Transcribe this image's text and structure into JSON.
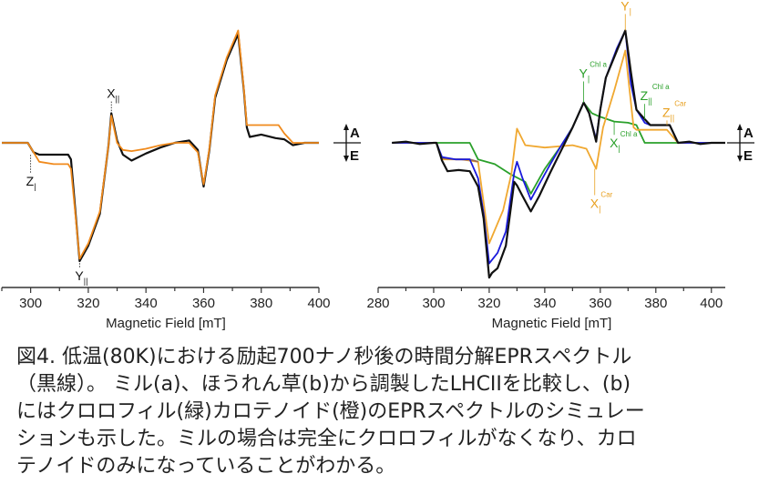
{
  "chart_data": [
    {
      "type": "line",
      "panel": "a",
      "xlabel": "Magnetic Field [mT]",
      "ylabel": "",
      "xlim": [
        290,
        400
      ],
      "ylim": [
        -1.1,
        1.0
      ],
      "xticks": [
        300,
        320,
        340,
        360,
        380,
        400
      ],
      "tick_labels": [
        "300",
        "320",
        "340",
        "360",
        "380",
        "400"
      ],
      "sign_labels": {
        "up": "A",
        "down": "E"
      },
      "series": [
        {
          "name": "experiment",
          "color": "#111111",
          "x": [
            290,
            295,
            299,
            301,
            303,
            308,
            313,
            314,
            317,
            320,
            324,
            327,
            328,
            330,
            332,
            335,
            340,
            345,
            350,
            355,
            358,
            360,
            362,
            364,
            368,
            372,
            374,
            375,
            376,
            380,
            385,
            388,
            391,
            395,
            400
          ],
          "y": [
            0,
            0,
            0,
            -0.08,
            -0.1,
            -0.1,
            -0.1,
            -0.14,
            -1.0,
            -0.87,
            -0.6,
            -0.02,
            0.25,
            0.02,
            -0.1,
            -0.15,
            -0.09,
            -0.04,
            0,
            0.02,
            -0.06,
            -0.37,
            -0.06,
            0.38,
            0.7,
            0.92,
            0.44,
            0.13,
            0.05,
            0.07,
            0.04,
            0.03,
            -0.02,
            0,
            0
          ]
        },
        {
          "name": "simulation",
          "color": "#f08a1c",
          "x": [
            290,
            299,
            301,
            303,
            308,
            313,
            314,
            317,
            320,
            324,
            327,
            328,
            330,
            332,
            335,
            340,
            345,
            350,
            355,
            358,
            360,
            362,
            364,
            368,
            372,
            374,
            375,
            376,
            380,
            386,
            388,
            391,
            400
          ],
          "y": [
            0,
            0,
            -0.08,
            -0.16,
            -0.18,
            -0.18,
            -0.22,
            -0.98,
            -0.85,
            -0.58,
            -0.02,
            0.23,
            0.0,
            -0.06,
            -0.07,
            -0.05,
            -0.02,
            0,
            0,
            -0.08,
            -0.35,
            -0.05,
            0.4,
            0.72,
            0.95,
            0.45,
            0.15,
            0.15,
            0.15,
            0.15,
            0.08,
            0,
            0
          ]
        }
      ],
      "annotations": [
        {
          "main": "X",
          "sub": "||",
          "sup": "",
          "color": "#111111",
          "x": 328,
          "y": 0.38,
          "line_to": 0.25
        },
        {
          "main": "Z",
          "sub": "|",
          "sup": "",
          "color": "#111111",
          "x": 300,
          "y": -0.36,
          "line_to": -0.09
        },
        {
          "main": "Y",
          "sub": "||",
          "sup": "",
          "color": "#111111",
          "x": 317,
          "y": -1.16,
          "line_to": -1.0
        }
      ]
    },
    {
      "type": "line",
      "panel": "b",
      "xlabel": "Magnetic Field [mT]",
      "ylabel": "",
      "xlim": [
        280,
        405
      ],
      "ylim": [
        -1.2,
        1.2
      ],
      "xticks": [
        280,
        300,
        320,
        340,
        360,
        380,
        400
      ],
      "tick_labels": [
        "280",
        "300",
        "320",
        "340",
        "360",
        "380",
        "400"
      ],
      "sign_labels": {
        "up": "A",
        "down": "E"
      },
      "series": [
        {
          "name": "green-chlorophyll-sim",
          "color": "#2aa02a",
          "x": [
            285,
            313,
            316,
            322,
            328,
            333,
            335,
            340,
            346,
            350,
            354,
            357,
            360,
            365,
            370,
            373,
            376,
            380,
            400
          ],
          "y": [
            0,
            0,
            -0.14,
            -0.18,
            -0.27,
            -0.33,
            -0.43,
            -0.22,
            -0.02,
            0.13,
            0.34,
            0.25,
            0.22,
            0.18,
            0.17,
            0.15,
            0,
            0,
            0
          ]
        },
        {
          "name": "orange-carotenoid-sim",
          "color": "#f0a830",
          "x": [
            285,
            301,
            303,
            310,
            316,
            320,
            325,
            328,
            330,
            333,
            340,
            350,
            355,
            358.5,
            361,
            365,
            369,
            372,
            373,
            380,
            384,
            388,
            400
          ],
          "y": [
            0,
            0,
            -0.14,
            -0.14,
            -0.16,
            -0.85,
            -0.57,
            -0.26,
            0.12,
            -0.02,
            -0.04,
            -0.02,
            -0.05,
            -0.22,
            0.13,
            0.44,
            0.78,
            0.13,
            0.11,
            0.11,
            0.11,
            0,
            0
          ]
        },
        {
          "name": "brown-sum",
          "color": "#9a6a50",
          "x": [
            301,
            303,
            308,
            313,
            316
          ],
          "y": [
            0,
            -0.13,
            -0.14,
            -0.14,
            -0.16
          ]
        },
        {
          "name": "blue-total-sim",
          "color": "#1a1adc",
          "x": [
            285,
            301,
            303,
            308,
            313,
            316,
            318,
            320,
            323,
            326,
            329,
            330,
            332,
            335,
            338,
            342,
            346,
            350,
            354,
            356,
            358.5,
            360,
            362,
            366,
            369,
            371,
            373,
            376,
            378,
            385,
            388,
            400
          ],
          "y": [
            0,
            0,
            -0.12,
            -0.14,
            -0.14,
            -0.3,
            -0.6,
            -1.02,
            -0.93,
            -0.75,
            -0.25,
            -0.16,
            -0.3,
            -0.48,
            -0.35,
            -0.18,
            -0.02,
            0.13,
            0.34,
            0.25,
            0.03,
            0.28,
            0.55,
            0.8,
            0.95,
            0.5,
            0.28,
            0.17,
            0.15,
            0.15,
            0,
            0
          ]
        },
        {
          "name": "black-experiment",
          "color": "#111111",
          "x": [
            285,
            290,
            295,
            300,
            301,
            303,
            305,
            309,
            313,
            316,
            318,
            320,
            321,
            323,
            326,
            329,
            330,
            332,
            335,
            338,
            342,
            346,
            350,
            354,
            356,
            358.5,
            360,
            362,
            366,
            369,
            371,
            373,
            376,
            378,
            385,
            388,
            392,
            396,
            400,
            405
          ],
          "y": [
            0,
            0.01,
            -0.01,
            0,
            0,
            -0.15,
            -0.24,
            -0.23,
            -0.24,
            -0.37,
            -0.64,
            -1.14,
            -1.1,
            -1.06,
            -0.87,
            -0.33,
            -0.36,
            -0.45,
            -0.58,
            -0.45,
            -0.25,
            -0.06,
            0.13,
            0.34,
            0.25,
            0.01,
            0.28,
            0.55,
            0.78,
            0.95,
            0.6,
            0.28,
            0.2,
            0.15,
            0.15,
            0,
            0.01,
            -0.01,
            0,
            0
          ]
        }
      ],
      "annotations": [
        {
          "main": "Y",
          "sub": "|",
          "sup": "Car",
          "color": "#e8a020",
          "x": 369,
          "y": 1.12,
          "line_to": 0.95
        },
        {
          "main": "Y",
          "sub": "|",
          "sup": "Chl a",
          "color": "#2aa02a",
          "x": 354,
          "y": 0.55,
          "line_to": 0.34
        },
        {
          "main": "Z",
          "sub": "||",
          "sup": "Chl a",
          "color": "#2aa02a",
          "x": 376,
          "y": 0.36,
          "line_to": 0.2
        },
        {
          "main": "Z",
          "sub": "||",
          "sup": "Car",
          "color": "#e8a020",
          "x": 384,
          "y": 0.22,
          "line_to": 0.15
        },
        {
          "main": "X",
          "sub": "|",
          "sup": "Chl a",
          "color": "#2aa02a",
          "x": 365,
          "y": -0.04,
          "line_to": 0.18
        },
        {
          "main": "X",
          "sub": "|",
          "sup": "Car",
          "color": "#e8a020",
          "x": 358,
          "y": -0.55,
          "line_to": -0.22
        }
      ]
    }
  ],
  "caption": {
    "lines": [
      "図4. 低温(80K)における励起700ナノ秒後の時間分解EPRスペクトル",
      "（黒線）。 ミル(a)、ほうれん草(b)から調製したLHCIIを比較し、(b)",
      "にはクロロフィル(緑)カロテノイド(橙)のEPRスペクトルのシミュレー",
      "ションも示した。ミルの場合は完全にクロロフィルがなくなり、カロ",
      "テノイドのみになっていることがわかる。"
    ]
  }
}
